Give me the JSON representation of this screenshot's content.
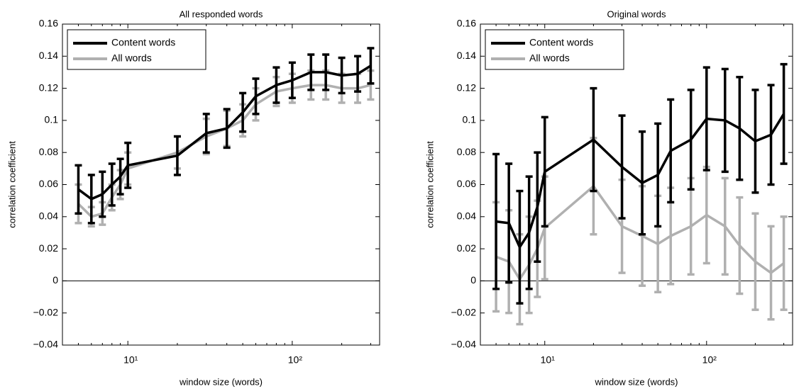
{
  "chart_data": [
    {
      "type": "line",
      "title": "All responded words",
      "xlabel": "window size (words)",
      "ylabel": "correlation coefficient",
      "x": [
        5,
        6,
        7,
        8,
        9,
        10,
        20,
        30,
        40,
        50,
        60,
        80,
        100,
        130,
        160,
        200,
        250,
        300
      ],
      "xscale": "log",
      "xlim": [
        4,
        340
      ],
      "xticks": [
        {
          "value": 10,
          "label": "10¹"
        },
        {
          "value": 100,
          "label": "10²"
        }
      ],
      "ylim": [
        -0.04,
        0.16
      ],
      "yticks": [
        {
          "value": -0.04,
          "label": "−0.04"
        },
        {
          "value": -0.02,
          "label": "−0.02"
        },
        0,
        0.02,
        0.04,
        0.06,
        0.08,
        0.1,
        0.12,
        0.14,
        0.16
      ],
      "legend": "upper left",
      "series": [
        {
          "name": "All words",
          "color": "#b0b0b0",
          "values": [
            0.048,
            0.04,
            0.042,
            0.052,
            0.06,
            0.07,
            0.08,
            0.09,
            0.095,
            0.1,
            0.11,
            0.118,
            0.12,
            0.122,
            0.122,
            0.12,
            0.12,
            0.122
          ],
          "errors": [
            0.012,
            0.006,
            0.007,
            0.008,
            0.009,
            0.01,
            0.01,
            0.011,
            0.011,
            0.01,
            0.01,
            0.009,
            0.009,
            0.009,
            0.009,
            0.009,
            0.009,
            0.009
          ]
        },
        {
          "name": "Content words",
          "color": "#000000",
          "values": [
            0.057,
            0.051,
            0.054,
            0.06,
            0.065,
            0.072,
            0.078,
            0.092,
            0.095,
            0.105,
            0.115,
            0.122,
            0.125,
            0.13,
            0.13,
            0.128,
            0.129,
            0.134
          ],
          "errors": [
            0.015,
            0.015,
            0.014,
            0.013,
            0.011,
            0.014,
            0.012,
            0.012,
            0.012,
            0.012,
            0.011,
            0.011,
            0.011,
            0.011,
            0.011,
            0.011,
            0.011,
            0.011
          ]
        }
      ]
    },
    {
      "type": "line",
      "title": "Original words",
      "xlabel": "window size (words)",
      "ylabel": "correlation coefficient",
      "x": [
        5,
        6,
        7,
        8,
        9,
        10,
        20,
        30,
        40,
        50,
        60,
        80,
        100,
        130,
        160,
        200,
        250,
        300
      ],
      "xscale": "log",
      "xlim": [
        4,
        340
      ],
      "xticks": [
        {
          "value": 10,
          "label": "10¹"
        },
        {
          "value": 100,
          "label": "10²"
        }
      ],
      "ylim": [
        -0.04,
        0.16
      ],
      "yticks": [
        {
          "value": -0.04,
          "label": "−0.04"
        },
        {
          "value": -0.02,
          "label": "−0.02"
        },
        0,
        0.02,
        0.04,
        0.06,
        0.08,
        0.1,
        0.12,
        0.14,
        0.16
      ],
      "legend": "upper left",
      "series": [
        {
          "name": "All words",
          "color": "#b0b0b0",
          "values": [
            0.015,
            0.012,
            0.001,
            0.01,
            0.02,
            0.033,
            0.059,
            0.034,
            0.028,
            0.023,
            0.028,
            0.034,
            0.041,
            0.034,
            0.022,
            0.012,
            0.005,
            0.011
          ],
          "errors": [
            0.034,
            0.032,
            0.028,
            0.03,
            0.03,
            0.032,
            0.03,
            0.029,
            0.031,
            0.03,
            0.03,
            0.03,
            0.03,
            0.03,
            0.03,
            0.03,
            0.029,
            0.029
          ]
        },
        {
          "name": "Content words",
          "color": "#000000",
          "values": [
            0.037,
            0.036,
            0.021,
            0.03,
            0.046,
            0.068,
            0.088,
            0.071,
            0.061,
            0.066,
            0.081,
            0.088,
            0.101,
            0.1,
            0.095,
            0.087,
            0.091,
            0.104
          ],
          "errors": [
            0.042,
            0.037,
            0.035,
            0.035,
            0.034,
            0.034,
            0.032,
            0.032,
            0.032,
            0.032,
            0.032,
            0.031,
            0.032,
            0.032,
            0.032,
            0.032,
            0.031,
            0.031
          ]
        }
      ]
    }
  ]
}
